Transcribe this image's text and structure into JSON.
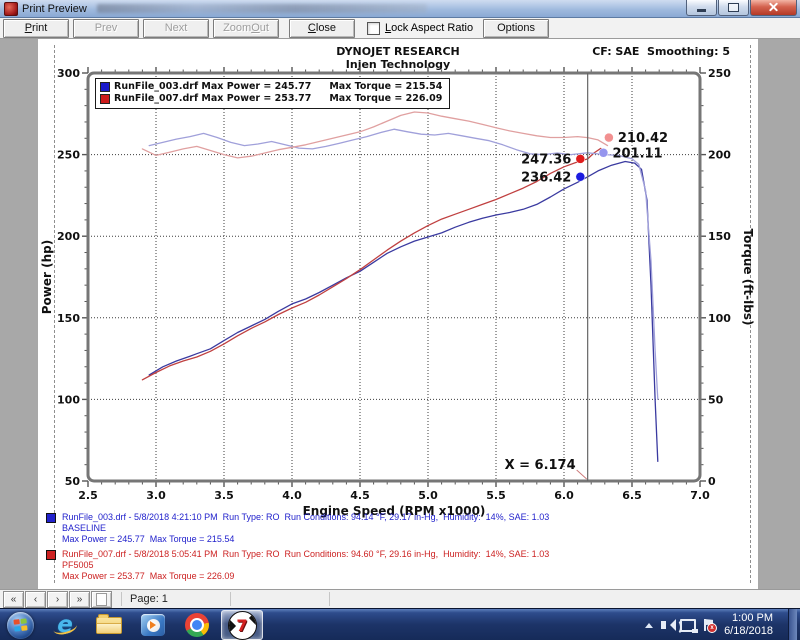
{
  "window": {
    "title": "Print Preview"
  },
  "toolbar": {
    "print": {
      "label": "Print"
    },
    "prev": {
      "label": "Prev"
    },
    "next": {
      "label": "Next"
    },
    "zoom_out": {
      "label": "Zoom Out"
    },
    "close": {
      "label": "Close"
    },
    "lock_aspect": {
      "label": "Lock Aspect Ratio",
      "checked": false
    },
    "options": {
      "label": "Options"
    }
  },
  "chart_data": {
    "type": "line",
    "title": "DYNOJET RESEARCH",
    "subtitle": "Injen Technology",
    "cf_note": "CF: SAE  Smoothing: 5",
    "xlabel": "Engine Speed (RPM x1000)",
    "ylabel_left": "Power (hp)",
    "ylabel_right": "Torque (ft-lbs)",
    "xlim": [
      2.5,
      7.0
    ],
    "x_major_step": 0.5,
    "x_minor_step": 0.1,
    "ylim_left": [
      50,
      300
    ],
    "ylim_right": [
      0,
      250
    ],
    "y_major_step": 50,
    "y_minor_step": 10,
    "grid": true,
    "legend_position": "top-left",
    "legend": [
      {
        "color": "#1a1acc",
        "power_text": "RunFile_003.drf Max Power = 245.77",
        "torque_text": "Max Torque = 215.54"
      },
      {
        "color": "#cc1a1a",
        "power_text": "RunFile_007.drf Max Power = 253.77",
        "torque_text": "Max Torque = 226.09"
      }
    ],
    "series": [
      {
        "id": "run003-power",
        "name": "RunFile_003.drf Power",
        "axis": "left",
        "color": "#3a3aa0",
        "points": [
          [
            2.95,
            115
          ],
          [
            3.05,
            120
          ],
          [
            3.15,
            123.5
          ],
          [
            3.25,
            126.5
          ],
          [
            3.3,
            128
          ],
          [
            3.4,
            131
          ],
          [
            3.5,
            136
          ],
          [
            3.6,
            141
          ],
          [
            3.7,
            145
          ],
          [
            3.8,
            149
          ],
          [
            3.9,
            154
          ],
          [
            4.0,
            158.5
          ],
          [
            4.1,
            161.5
          ],
          [
            4.2,
            165.5
          ],
          [
            4.3,
            170
          ],
          [
            4.4,
            174.5
          ],
          [
            4.5,
            178.5
          ],
          [
            4.6,
            184
          ],
          [
            4.7,
            189.5
          ],
          [
            4.8,
            193.5
          ],
          [
            4.9,
            197
          ],
          [
            5.0,
            199.5
          ],
          [
            5.1,
            202
          ],
          [
            5.2,
            205.5
          ],
          [
            5.3,
            208.5
          ],
          [
            5.4,
            211
          ],
          [
            5.5,
            213
          ],
          [
            5.6,
            214.5
          ],
          [
            5.7,
            216.5
          ],
          [
            5.8,
            219.5
          ],
          [
            5.9,
            224
          ],
          [
            6.0,
            229
          ],
          [
            6.1,
            233
          ],
          [
            6.174,
            236.42
          ],
          [
            6.25,
            240
          ],
          [
            6.35,
            243.5
          ],
          [
            6.45,
            245.77
          ],
          [
            6.52,
            244.8
          ],
          [
            6.57,
            241
          ],
          [
            6.61,
            222
          ],
          [
            6.64,
            170
          ],
          [
            6.67,
            100
          ],
          [
            6.69,
            62
          ]
        ]
      },
      {
        "id": "run007-power",
        "name": "RunFile_007.drf Power",
        "axis": "left",
        "color": "#c04040",
        "points": [
          [
            2.9,
            112
          ],
          [
            3.0,
            116.5
          ],
          [
            3.1,
            120.5
          ],
          [
            3.2,
            123.5
          ],
          [
            3.3,
            126
          ],
          [
            3.4,
            129.5
          ],
          [
            3.5,
            134
          ],
          [
            3.6,
            139
          ],
          [
            3.7,
            143.5
          ],
          [
            3.8,
            147.5
          ],
          [
            3.9,
            152
          ],
          [
            4.0,
            156
          ],
          [
            4.1,
            159.5
          ],
          [
            4.2,
            164
          ],
          [
            4.3,
            169
          ],
          [
            4.4,
            174
          ],
          [
            4.5,
            179.5
          ],
          [
            4.6,
            185.5
          ],
          [
            4.7,
            191.5
          ],
          [
            4.8,
            197
          ],
          [
            4.9,
            202
          ],
          [
            5.0,
            206.5
          ],
          [
            5.1,
            210.5
          ],
          [
            5.2,
            213.5
          ],
          [
            5.3,
            216.5
          ],
          [
            5.4,
            219.5
          ],
          [
            5.5,
            222.5
          ],
          [
            5.6,
            226
          ],
          [
            5.7,
            229.5
          ],
          [
            5.8,
            233.5
          ],
          [
            5.9,
            238.5
          ],
          [
            6.0,
            242.5
          ],
          [
            6.1,
            245.5
          ],
          [
            6.174,
            247.36
          ],
          [
            6.22,
            251
          ],
          [
            6.27,
            253.77
          ],
          [
            6.31,
            250.5
          ]
        ]
      },
      {
        "id": "run003-torque",
        "name": "RunFile_003.drf Torque",
        "axis": "right",
        "color": "#a0a0da",
        "points": [
          [
            2.95,
            205.5
          ],
          [
            3.05,
            207.5
          ],
          [
            3.15,
            209.5
          ],
          [
            3.25,
            211
          ],
          [
            3.35,
            213
          ],
          [
            3.45,
            210.5
          ],
          [
            3.55,
            207.5
          ],
          [
            3.65,
            205.5
          ],
          [
            3.75,
            206.5
          ],
          [
            3.85,
            208
          ],
          [
            3.95,
            206
          ],
          [
            4.05,
            204
          ],
          [
            4.15,
            203.5
          ],
          [
            4.25,
            205
          ],
          [
            4.35,
            207
          ],
          [
            4.45,
            209
          ],
          [
            4.55,
            211
          ],
          [
            4.65,
            213.5
          ],
          [
            4.75,
            215.54
          ],
          [
            4.85,
            214
          ],
          [
            4.95,
            212.5
          ],
          [
            5.05,
            212
          ],
          [
            5.15,
            213
          ],
          [
            5.25,
            211.5
          ],
          [
            5.35,
            210
          ],
          [
            5.45,
            208.5
          ],
          [
            5.55,
            206
          ],
          [
            5.65,
            203
          ],
          [
            5.75,
            200.5
          ],
          [
            5.85,
            200
          ],
          [
            5.95,
            201
          ],
          [
            6.05,
            200
          ],
          [
            6.174,
            201.11
          ],
          [
            6.3,
            200
          ],
          [
            6.4,
            199.5
          ],
          [
            6.5,
            197.5
          ],
          [
            6.55,
            194
          ],
          [
            6.6,
            178
          ],
          [
            6.64,
            135
          ],
          [
            6.67,
            80
          ],
          [
            6.69,
            50
          ]
        ]
      },
      {
        "id": "run007-torque",
        "name": "RunFile_007.drf Torque",
        "axis": "right",
        "color": "#e0a0a0",
        "points": [
          [
            2.9,
            203.5
          ],
          [
            3.0,
            199.5
          ],
          [
            3.1,
            201.5
          ],
          [
            3.2,
            203.5
          ],
          [
            3.3,
            205
          ],
          [
            3.4,
            202.5
          ],
          [
            3.5,
            200
          ],
          [
            3.6,
            198
          ],
          [
            3.7,
            199
          ],
          [
            3.8,
            201
          ],
          [
            3.9,
            203
          ],
          [
            4.0,
            204.5
          ],
          [
            4.1,
            206
          ],
          [
            4.2,
            208
          ],
          [
            4.3,
            210
          ],
          [
            4.4,
            212
          ],
          [
            4.5,
            214
          ],
          [
            4.6,
            217
          ],
          [
            4.7,
            220.5
          ],
          [
            4.8,
            224
          ],
          [
            4.9,
            226.09
          ],
          [
            5.0,
            225.5
          ],
          [
            5.1,
            223.5
          ],
          [
            5.2,
            222
          ],
          [
            5.3,
            220.5
          ],
          [
            5.4,
            218.5
          ],
          [
            5.5,
            216.5
          ],
          [
            5.6,
            214.5
          ],
          [
            5.7,
            213
          ],
          [
            5.8,
            211.5
          ],
          [
            5.9,
            210.5
          ],
          [
            6.0,
            210.5
          ],
          [
            6.1,
            211
          ],
          [
            6.174,
            210.42
          ],
          [
            6.25,
            209
          ],
          [
            6.32,
            205.5
          ]
        ]
      }
    ],
    "cursor": {
      "x": 6.174,
      "label": "X = 6.174"
    },
    "callouts": [
      {
        "id": "torque-007",
        "label": "210.42",
        "value": 210.42,
        "axis": "right",
        "x": 6.33,
        "dot_color": "#f29090",
        "label_side": "right"
      },
      {
        "id": "torque-003",
        "label": "201.11",
        "value": 201.11,
        "axis": "right",
        "x": 6.29,
        "dot_color": "#9595ee",
        "label_side": "right"
      },
      {
        "id": "power-007",
        "label": "247.36",
        "value": 247.36,
        "axis": "left",
        "x": 6.12,
        "dot_color": "#e01c1c",
        "label_side": "left"
      },
      {
        "id": "power-003",
        "label": "236.42",
        "value": 236.42,
        "axis": "left",
        "x": 6.12,
        "dot_color": "#1c1ce0",
        "label_side": "left"
      }
    ]
  },
  "run_info": [
    {
      "color": "#2222cc",
      "line1": "RunFile_003.drf - 5/8/2018 4:21:10 PM  Run Type: RO  Run Conditions: 94.14 °F, 29.17 in-Hg,  Humidity:  14%, SAE: 1.03",
      "line2": "BASELINE",
      "line3": "Max Power = 245.77  Max Torque = 215.54"
    },
    {
      "color": "#cc2222",
      "line1": "RunFile_007.drf - 5/8/2018 5:05:41 PM  Run Type: RO  Run Conditions: 94.60 °F, 29.16 in-Hg,  Humidity:  14%, SAE: 1.03",
      "line2": "PF5005",
      "line3": "Max Power = 253.77  Max Torque = 226.09"
    }
  ],
  "statusbar": {
    "nav": [
      "«",
      "‹",
      "›",
      "»"
    ],
    "page_label": "Page: 1"
  },
  "taskbar": {
    "icons": [
      "start",
      "internet-explorer",
      "windows-explorer",
      "windows-media-player",
      "chrome",
      "winpep7-active"
    ],
    "clock_time": "1:00 PM",
    "clock_date": "6/18/2018"
  }
}
